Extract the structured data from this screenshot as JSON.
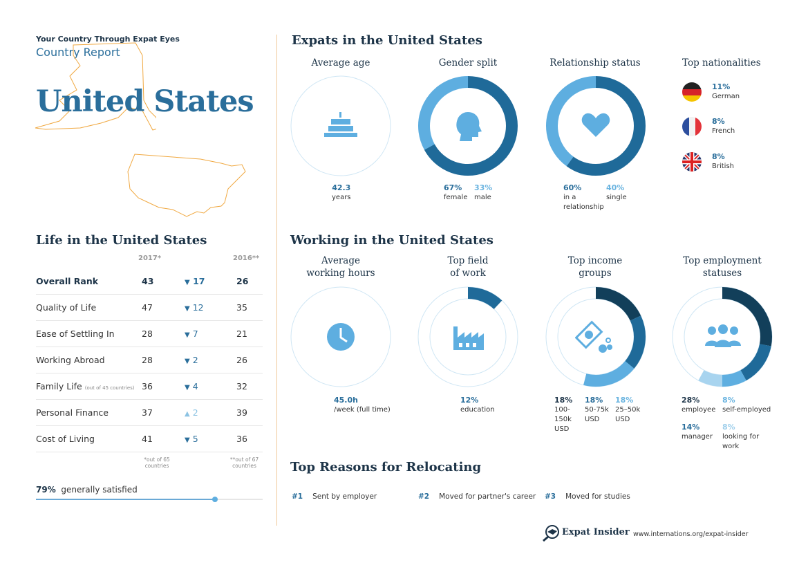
{
  "header": {
    "kicker": "Your Country Through Expat Eyes",
    "report": "Country Report",
    "country": "United States"
  },
  "life": {
    "title": "Life in the United States",
    "col2017": "2017*",
    "col2016": "2016**",
    "rows": [
      {
        "label": "Overall Rank",
        "note": "",
        "y2017": "43",
        "dir": "down",
        "change": "17",
        "y2016": "26"
      },
      {
        "label": "Quality of Life",
        "note": "",
        "y2017": "47",
        "dir": "down",
        "change": "12",
        "y2016": "35"
      },
      {
        "label": "Ease of Settling In",
        "note": "",
        "y2017": "28",
        "dir": "down",
        "change": "7",
        "y2016": "21"
      },
      {
        "label": "Working Abroad",
        "note": "",
        "y2017": "28",
        "dir": "down",
        "change": "2",
        "y2016": "26"
      },
      {
        "label": "Family Life",
        "note": "(out of 45 countries)",
        "y2017": "36",
        "dir": "down",
        "change": "4",
        "y2016": "32"
      },
      {
        "label": "Personal Finance",
        "note": "",
        "y2017": "37",
        "dir": "up",
        "change": "2",
        "y2016": "39"
      },
      {
        "label": "Cost of Living",
        "note": "",
        "y2017": "41",
        "dir": "down",
        "change": "5",
        "y2016": "36"
      }
    ],
    "foot2017": "*out of 65 countries",
    "foot2016": "**out of 67 countries",
    "satisfied_pct": "79%",
    "satisfied_label": "generally satisfied",
    "satisfied_value": 79
  },
  "expats": {
    "title": "Expats in the United States",
    "age": {
      "head": "Average age",
      "value": "42.3",
      "unit": "years"
    },
    "gender": {
      "head": "Gender split",
      "a_pct": "67%",
      "a_lab": "female",
      "b_pct": "33%",
      "b_lab": "male",
      "segments": [
        67,
        33
      ]
    },
    "relationship": {
      "head": "Relationship status",
      "a_pct": "60%",
      "a_lab": "in a relationship",
      "b_pct": "40%",
      "b_lab": "single",
      "segments": [
        60,
        40
      ]
    },
    "nationalities": {
      "head": "Top nationalities",
      "items": [
        {
          "pct": "11%",
          "label": "German"
        },
        {
          "pct": "8%",
          "label": "French"
        },
        {
          "pct": "8%",
          "label": "British"
        }
      ]
    }
  },
  "working": {
    "title": "Working in the United States",
    "hours": {
      "head1": "Average",
      "head2": "working hours",
      "value": "45.0h",
      "unit": "/week (full time)"
    },
    "field": {
      "head1": "Top field",
      "head2": "of work",
      "pct": "12%",
      "label": "education",
      "segments": [
        12
      ]
    },
    "income": {
      "head1": "Top income",
      "head2": "groups",
      "items": [
        {
          "pct": "18%",
          "label": "100-150k USD"
        },
        {
          "pct": "18%",
          "label": "50-75k USD"
        },
        {
          "pct": "18%",
          "label": "25–50k USD"
        }
      ],
      "segments": [
        18,
        18,
        18
      ]
    },
    "employment": {
      "head1": "Top employment",
      "head2": "statuses",
      "items": [
        {
          "pct": "28%",
          "label": "employee"
        },
        {
          "pct": "8%",
          "label": "self-employed"
        },
        {
          "pct": "14%",
          "label": "manager"
        },
        {
          "pct": "8%",
          "label": "looking for work"
        }
      ],
      "segments": [
        28,
        14,
        8,
        8
      ]
    }
  },
  "reasons": {
    "title": "Top Reasons for Relocating",
    "items": [
      {
        "rank": "#1",
        "label": "Sent by employer"
      },
      {
        "rank": "#2",
        "label": "Moved for partner's career"
      },
      {
        "rank": "#3",
        "label": "Moved for studies"
      }
    ]
  },
  "footer": {
    "brand": "Expat Insider",
    "url": "www.internations.org/expat-insider"
  },
  "colors": {
    "darkest": "#123f5a",
    "dark": "#1f6a99",
    "light": "#5eaee0",
    "lighter": "#a8d4ef",
    "title": "#2a6e9b",
    "map": "#f0a840"
  }
}
